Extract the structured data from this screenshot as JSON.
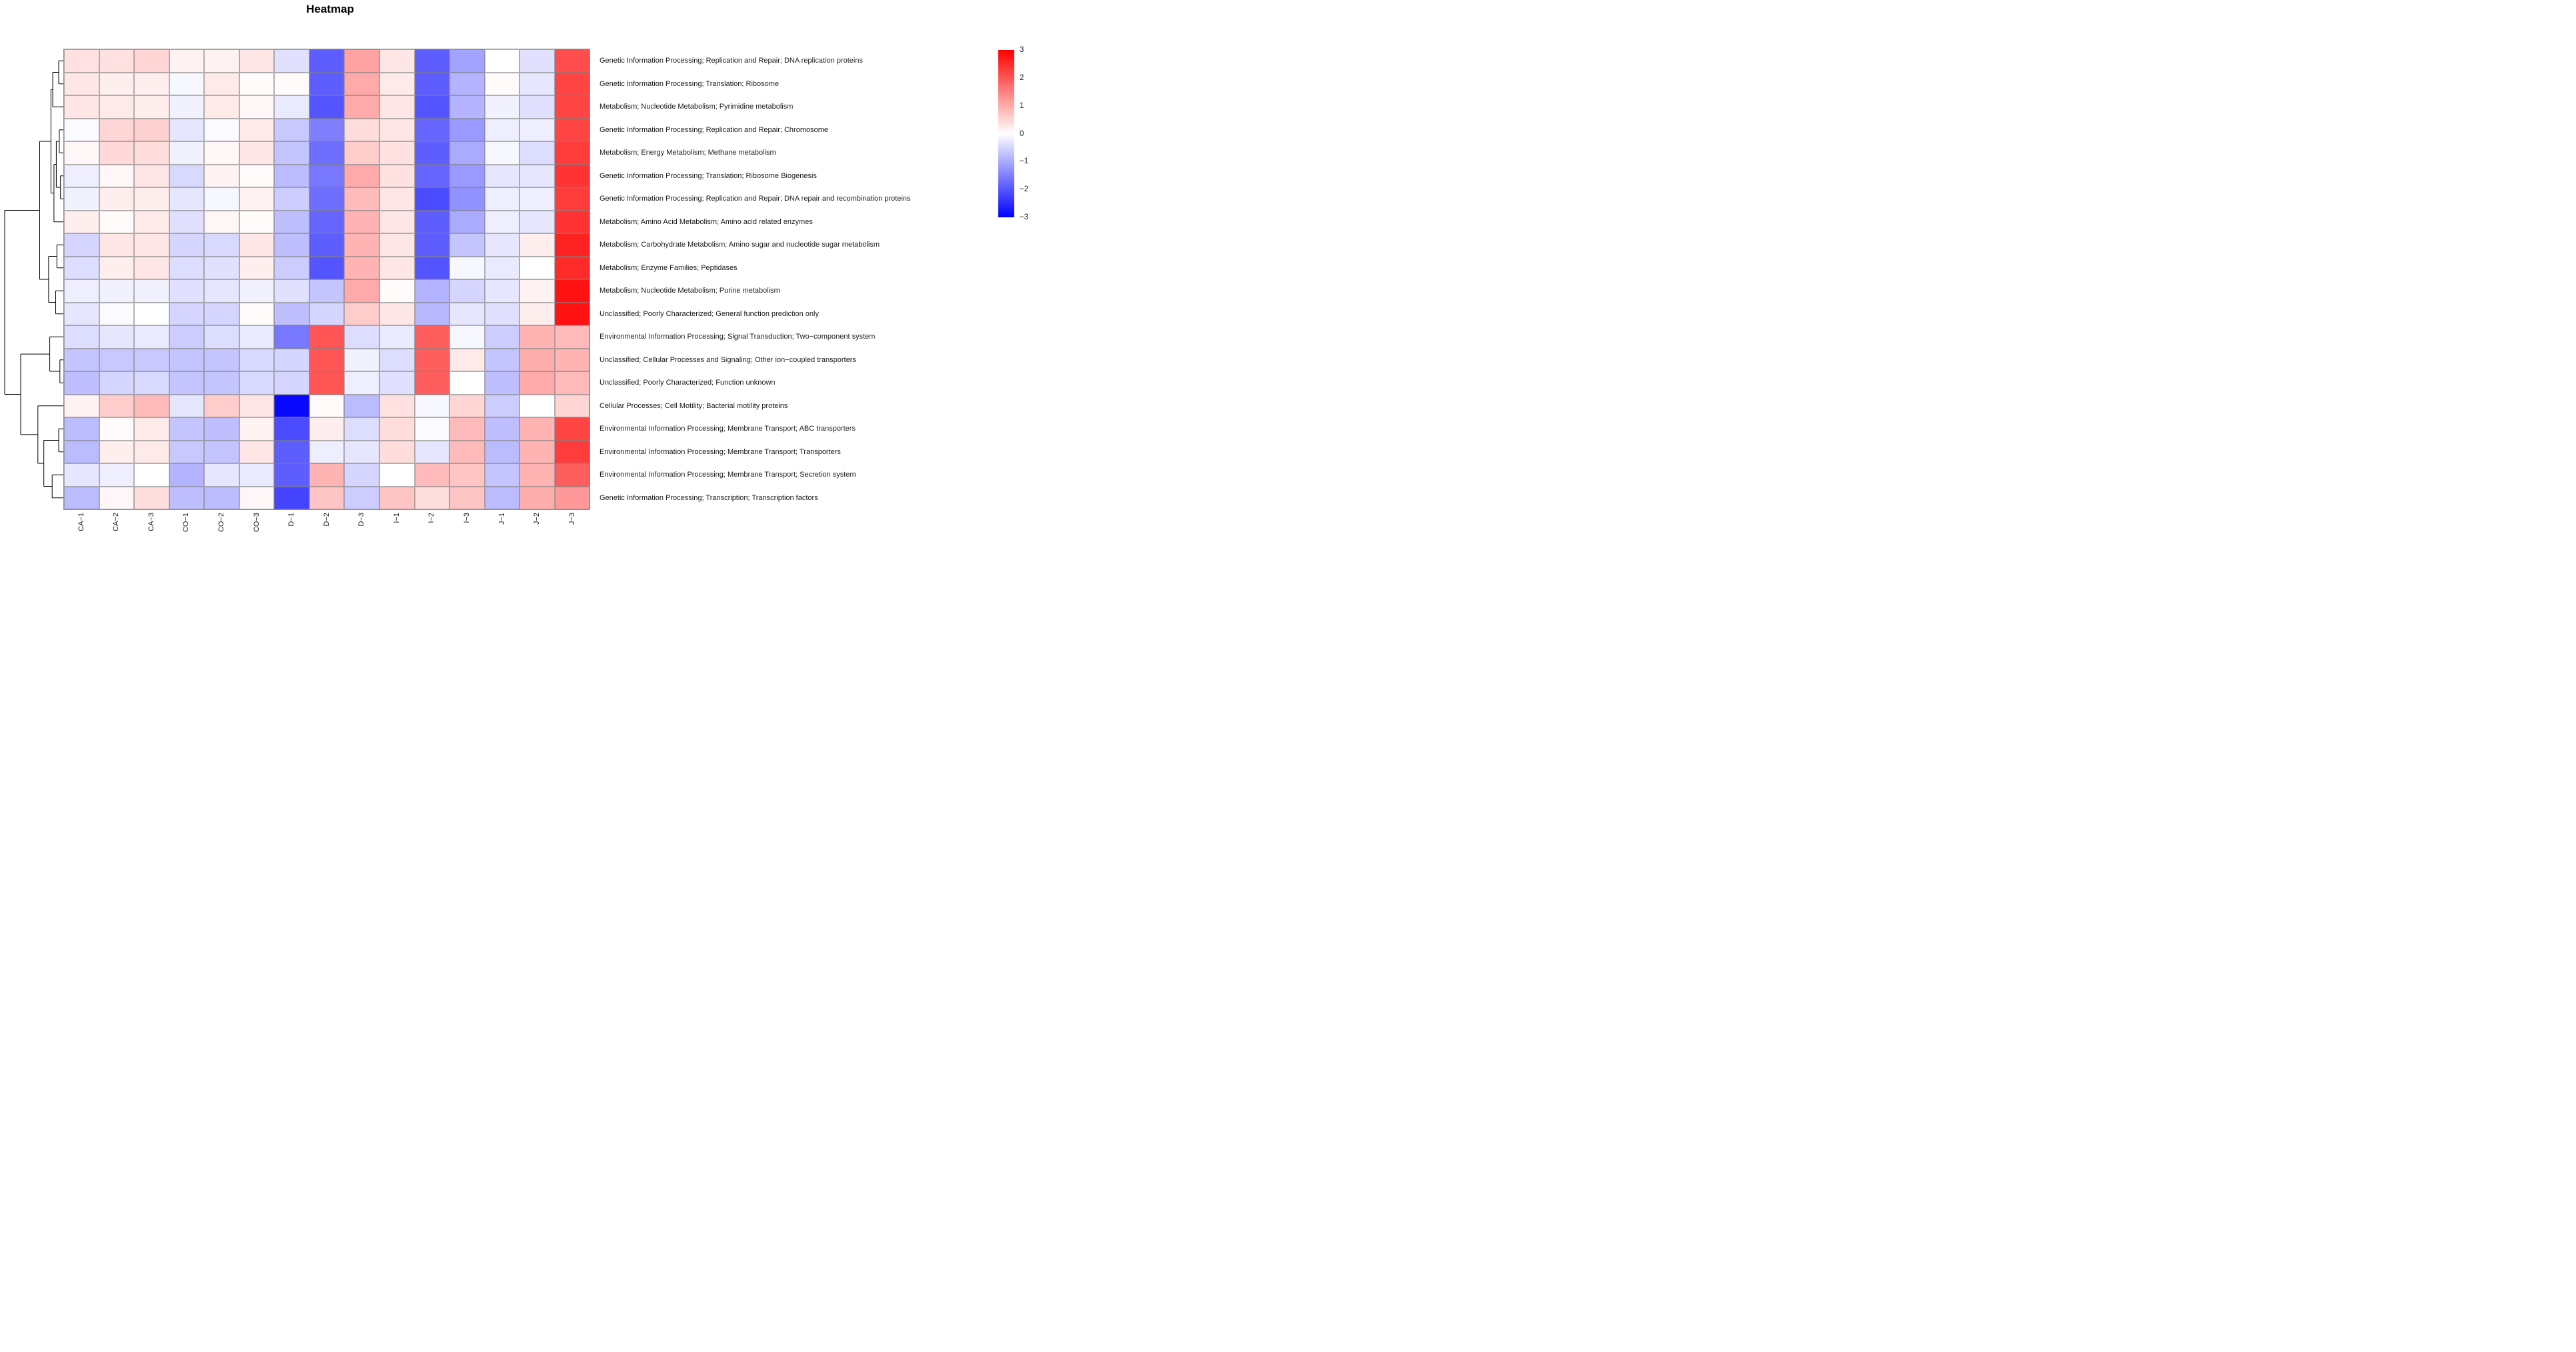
{
  "title": "Heatmap",
  "legend": {
    "ticks": [
      "3",
      "2",
      "1",
      "0",
      "−1",
      "−2",
      "−3"
    ]
  },
  "chart_data": {
    "type": "heatmap",
    "title": "Heatmap",
    "legend_position": "right",
    "colorscale": {
      "min": -3,
      "mid": 0,
      "max": 3,
      "min_color": "#0000FF",
      "mid_color": "#FFFFFF",
      "max_color": "#FF0000"
    },
    "columns": [
      "CA−1",
      "CA−2",
      "CA−3",
      "CO−1",
      "CO−2",
      "CO−3",
      "D−1",
      "D−2",
      "D−3",
      "I−1",
      "I−2",
      "I−3",
      "J−1",
      "J−2",
      "J−3"
    ],
    "rows": [
      "Genetic Information Processing; Replication and Repair; DNA replication proteins",
      "Genetic Information Processing; Translation; Ribosome",
      "Metabolism; Nucleotide Metabolism; Pyrimidine metabolism",
      "Genetic Information Processing; Replication and Repair; Chromosome",
      "Metabolism; Energy Metabolism; Methane metabolism",
      "Genetic Information Processing; Translation; Ribosome Biogenesis",
      "Genetic Information Processing; Replication and Repair; DNA repair and recombination proteins",
      "Metabolism; Amino Acid Metabolism; Amino acid related enzymes",
      "Metabolism; Carbohydrate Metabolism; Amino sugar and nucleotide sugar metabolism",
      "Metabolism; Enzyme Families; Peptidases",
      "Metabolism; Nucleotide Metabolism; Purine metabolism",
      "Unclassified; Poorly Characterized; General function prediction only",
      "Environmental Information Processing; Signal Transduction; Two−component system",
      "Unclassified; Cellular Processes and Signaling; Other ion−coupled transporters",
      "Unclassified; Poorly Characterized; Function unknown",
      "Cellular Processes; Cell Motility; Bacterial motility proteins",
      "Environmental Information Processing; Membrane Transport; ABC transporters",
      "Environmental Information Processing; Membrane Transport; Transporters",
      "Environmental Information Processing; Membrane Transport; Secretion system",
      "Genetic Information Processing; Transcription; Transcription factors"
    ],
    "values": [
      [
        0.35,
        0.35,
        0.5,
        0.15,
        0.15,
        0.3,
        -0.35,
        -1.9,
        1.1,
        0.3,
        -1.9,
        -1.1,
        0.0,
        -0.35,
        2.1
      ],
      [
        0.3,
        0.2,
        0.2,
        -0.1,
        0.25,
        0.05,
        0.05,
        -1.9,
        1.0,
        0.25,
        -1.9,
        -0.9,
        0.05,
        -0.3,
        2.2
      ],
      [
        0.3,
        0.25,
        0.2,
        -0.15,
        0.25,
        0.1,
        -0.25,
        -2.0,
        1.0,
        0.3,
        -2.0,
        -0.9,
        -0.15,
        -0.35,
        2.2
      ],
      [
        -0.05,
        0.5,
        0.55,
        -0.3,
        -0.05,
        0.25,
        -0.65,
        -1.5,
        0.4,
        0.3,
        -1.8,
        -1.2,
        -0.2,
        -0.2,
        2.2
      ],
      [
        0.1,
        0.45,
        0.4,
        -0.15,
        0.1,
        0.3,
        -0.7,
        -1.7,
        0.6,
        0.35,
        -1.9,
        -1.0,
        -0.1,
        -0.4,
        2.3
      ],
      [
        -0.2,
        0.1,
        0.3,
        -0.45,
        0.15,
        0.05,
        -0.8,
        -1.6,
        1.0,
        0.35,
        -1.8,
        -1.2,
        -0.3,
        -0.3,
        2.4
      ],
      [
        -0.15,
        0.2,
        0.2,
        -0.3,
        -0.1,
        0.15,
        -0.6,
        -1.7,
        0.8,
        0.3,
        -2.1,
        -1.3,
        -0.2,
        -0.2,
        2.3
      ],
      [
        0.2,
        0.05,
        0.25,
        -0.35,
        0.1,
        0.05,
        -0.75,
        -1.8,
        0.9,
        0.3,
        -1.9,
        -1.0,
        -0.2,
        -0.3,
        2.4
      ],
      [
        -0.5,
        0.3,
        0.3,
        -0.5,
        -0.45,
        0.3,
        -0.75,
        -1.9,
        0.9,
        0.3,
        -1.9,
        -0.7,
        -0.3,
        0.2,
        2.6
      ],
      [
        -0.4,
        0.2,
        0.3,
        -0.4,
        -0.35,
        0.2,
        -0.6,
        -2.0,
        0.9,
        0.3,
        -2.0,
        -0.1,
        -0.25,
        0.0,
        2.5
      ],
      [
        -0.2,
        -0.15,
        -0.15,
        -0.35,
        -0.3,
        -0.15,
        -0.35,
        -0.7,
        1.0,
        0.05,
        -0.9,
        -0.5,
        -0.3,
        0.15,
        2.8
      ],
      [
        -0.3,
        -0.05,
        0.0,
        -0.5,
        -0.5,
        0.05,
        -0.75,
        -0.5,
        0.6,
        0.3,
        -0.85,
        -0.3,
        -0.35,
        0.2,
        2.8
      ],
      [
        -0.4,
        -0.3,
        -0.25,
        -0.6,
        -0.4,
        -0.25,
        -1.6,
        2.0,
        -0.4,
        -0.25,
        1.9,
        -0.1,
        -0.6,
        0.9,
        0.8
      ],
      [
        -0.7,
        -0.65,
        -0.65,
        -0.7,
        -0.7,
        -0.45,
        -0.5,
        2.0,
        -0.15,
        -0.4,
        1.9,
        0.25,
        -0.7,
        0.95,
        0.9
      ],
      [
        -0.75,
        -0.5,
        -0.45,
        -0.7,
        -0.7,
        -0.45,
        -0.5,
        2.0,
        -0.2,
        -0.35,
        1.9,
        0.0,
        -0.75,
        1.0,
        0.8
      ],
      [
        0.15,
        0.6,
        0.8,
        -0.3,
        0.6,
        0.3,
        -2.9,
        0.05,
        -0.8,
        0.35,
        -0.1,
        0.5,
        -0.6,
        0.0,
        0.5
      ],
      [
        -0.8,
        0.05,
        0.25,
        -0.7,
        -0.75,
        0.15,
        -2.1,
        0.2,
        -0.4,
        0.4,
        -0.05,
        0.8,
        -0.75,
        0.9,
        2.2
      ],
      [
        -0.8,
        0.2,
        0.25,
        -0.65,
        -0.7,
        0.3,
        -1.9,
        -0.2,
        -0.3,
        0.4,
        -0.3,
        0.8,
        -0.8,
        0.9,
        2.3
      ],
      [
        -0.3,
        -0.2,
        0.0,
        -0.9,
        -0.3,
        -0.25,
        -1.9,
        0.9,
        -0.5,
        0.0,
        0.8,
        0.7,
        -0.7,
        0.9,
        1.9
      ],
      [
        -0.8,
        0.1,
        0.4,
        -0.75,
        -0.8,
        0.1,
        -2.2,
        0.7,
        -0.6,
        0.7,
        0.4,
        0.7,
        -0.8,
        0.95,
        1.2
      ]
    ],
    "row_dendrogram": {
      "h": 1.0,
      "children": [
        {
          "h": 0.41,
          "children": [
            {
              "h": 0.22,
              "children": [
                {
                  "h": 0.19,
                  "children": [
                    {
                      "h": 0.09,
                      "children": [
                        {
                          "leaf": 0
                        },
                        {
                          "leaf": 1
                        }
                      ]
                    },
                    {
                      "leaf": 2
                    }
                  ]
                },
                {
                  "h": 0.17,
                  "children": [
                    {
                      "h": 0.13,
                      "children": [
                        {
                          "h": 0.08,
                          "children": [
                            {
                              "leaf": 3
                            },
                            {
                              "leaf": 4
                            }
                          ]
                        },
                        {
                          "h": 0.06,
                          "children": [
                            {
                              "leaf": 5
                            },
                            {
                              "leaf": 6
                            }
                          ]
                        }
                      ]
                    },
                    {
                      "leaf": 7
                    }
                  ]
                }
              ]
            },
            {
              "h": 0.26,
              "children": [
                {
                  "h": 0.12,
                  "children": [
                    {
                      "leaf": 8
                    },
                    {
                      "leaf": 9
                    }
                  ]
                },
                {
                  "h": 0.14,
                  "children": [
                    {
                      "leaf": 10
                    },
                    {
                      "leaf": 11
                    }
                  ]
                }
              ]
            }
          ]
        },
        {
          "h": 0.73,
          "children": [
            {
              "h": 0.24,
              "children": [
                {
                  "leaf": 12
                },
                {
                  "h": 0.07,
                  "children": [
                    {
                      "leaf": 13
                    },
                    {
                      "leaf": 14
                    }
                  ]
                }
              ]
            },
            {
              "h": 0.44,
              "children": [
                {
                  "leaf": 15
                },
                {
                  "h": 0.34,
                  "children": [
                    {
                      "h": 0.09,
                      "children": [
                        {
                          "leaf": 16
                        },
                        {
                          "leaf": 17
                        }
                      ]
                    },
                    {
                      "h": 0.2,
                      "children": [
                        {
                          "leaf": 18
                        },
                        {
                          "leaf": 19
                        }
                      ]
                    }
                  ]
                }
              ]
            }
          ]
        }
      ]
    }
  }
}
